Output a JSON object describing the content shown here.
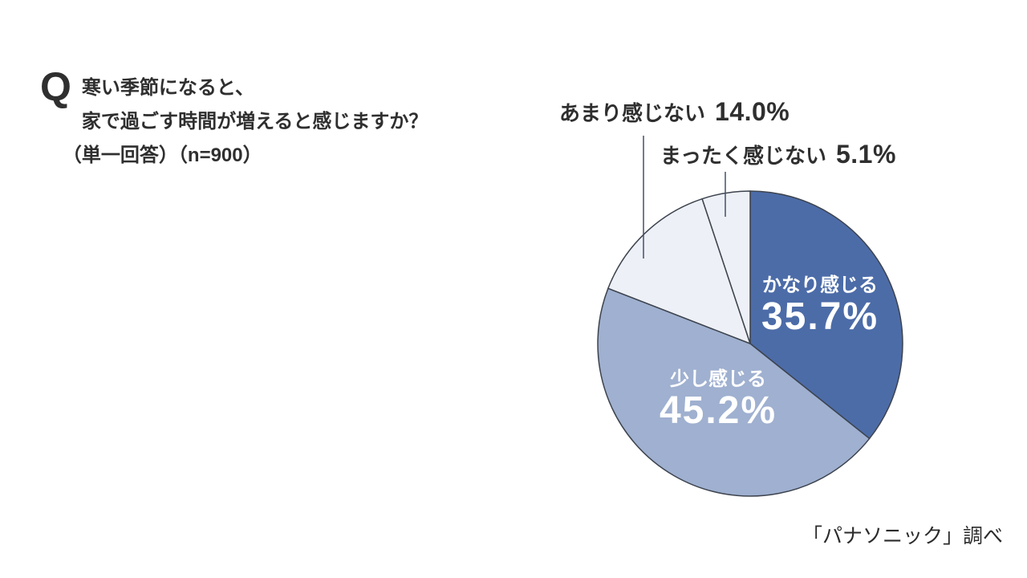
{
  "question": {
    "prefix": "Q",
    "line1": "寒い季節になると、",
    "line2": "家で過ごす時間が増えると感じますか？",
    "line3": "（単一回答）（n=900）"
  },
  "source": "「パナソニック」調べ",
  "chart_data": {
    "type": "pie",
    "title": "寒い季節になると、家で過ごす時間が増えると感じますか？（単一回答）（n=900）",
    "n_label": "n=900",
    "categories": [
      "かなり感じる",
      "少し感じる",
      "あまり感じない",
      "まったく感じない"
    ],
    "values": [
      35.7,
      45.2,
      14.0,
      5.1
    ],
    "unit": "%",
    "segments": [
      {
        "label": "かなり感じる",
        "value": 35.7,
        "pct_text": "35.7%",
        "color": "#4c6ca8",
        "label_color": "#ffffff",
        "label_position": "inside"
      },
      {
        "label": "少し感じる",
        "value": 45.2,
        "pct_text": "45.2%",
        "color": "#9fb0d0",
        "label_color": "#ffffff",
        "label_position": "inside"
      },
      {
        "label": "あまり感じない",
        "value": 14.0,
        "pct_text": "14.0%",
        "color": "#edf0f6",
        "label_color": "#2f2f2f",
        "label_position": "outside"
      },
      {
        "label": "まったく感じない",
        "value": 5.1,
        "pct_text": "5.1%",
        "color": "#edf0f6",
        "label_color": "#2f2f2f",
        "label_position": "outside"
      }
    ],
    "start_angle_deg": 0,
    "direction": "clockwise",
    "stroke_color": "#3d434e",
    "stroke_width": 1.5,
    "leader_line_color": "#44516b",
    "legend": "none",
    "grid": false
  }
}
